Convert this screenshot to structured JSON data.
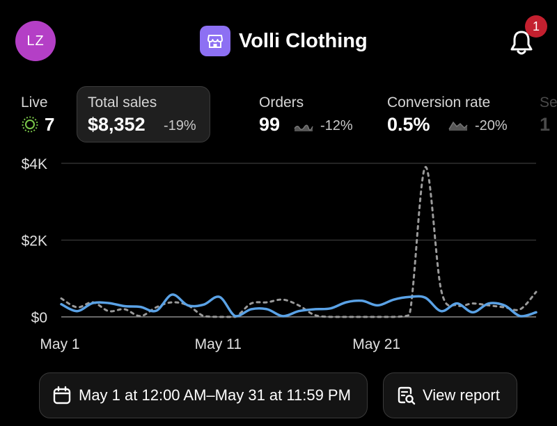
{
  "header": {
    "avatar_initials": "LZ",
    "store_name": "Volli Clothing",
    "notification_count": "1"
  },
  "metrics": {
    "live": {
      "label": "Live",
      "value": "7"
    },
    "total_sales": {
      "label": "Total sales",
      "value": "$8,352",
      "delta": "-19%"
    },
    "orders": {
      "label": "Orders",
      "value": "99",
      "delta": "-12%"
    },
    "conversion_rate": {
      "label": "Conversion rate",
      "value": "0.5%",
      "delta": "-20%"
    },
    "partial": {
      "label": "Se",
      "value": "1"
    }
  },
  "chart_data": {
    "type": "line",
    "ylim": [
      0,
      4000
    ],
    "yticks": [
      "$4K",
      "$2K",
      "$0"
    ],
    "xticks": [
      "May 1",
      "May 11",
      "May 21"
    ],
    "x": [
      1,
      2,
      3,
      4,
      5,
      6,
      7,
      8,
      9,
      10,
      11,
      12,
      13,
      14,
      15,
      16,
      17,
      18,
      19,
      20,
      21,
      22,
      23,
      24,
      25,
      26,
      27,
      28,
      29,
      30,
      31
    ],
    "series": [
      {
        "style": "solid",
        "color": "#5aa2e6",
        "values": [
          330,
          150,
          360,
          360,
          280,
          260,
          160,
          580,
          300,
          320,
          520,
          20,
          200,
          200,
          20,
          150,
          200,
          220,
          380,
          420,
          300,
          450,
          520,
          500,
          150,
          350,
          120,
          350,
          300,
          20,
          120
        ]
      },
      {
        "style": "dashed",
        "color": "#9a9a9a",
        "values": [
          480,
          250,
          380,
          150,
          200,
          20,
          250,
          380,
          300,
          20,
          0,
          0,
          350,
          380,
          450,
          300,
          50,
          0,
          0,
          0,
          0,
          0,
          50,
          3900,
          700,
          300,
          350,
          300,
          250,
          200,
          650
        ]
      }
    ]
  },
  "footer": {
    "date_range": "May 1 at 12:00 AM–May 31 at 11:59 PM",
    "view_report": "View report"
  },
  "colors": {
    "avatar": "#b43fc6",
    "store_icon": "#8d70f3",
    "badge": "#c4202f",
    "live_indicator": "#7bc84a"
  }
}
